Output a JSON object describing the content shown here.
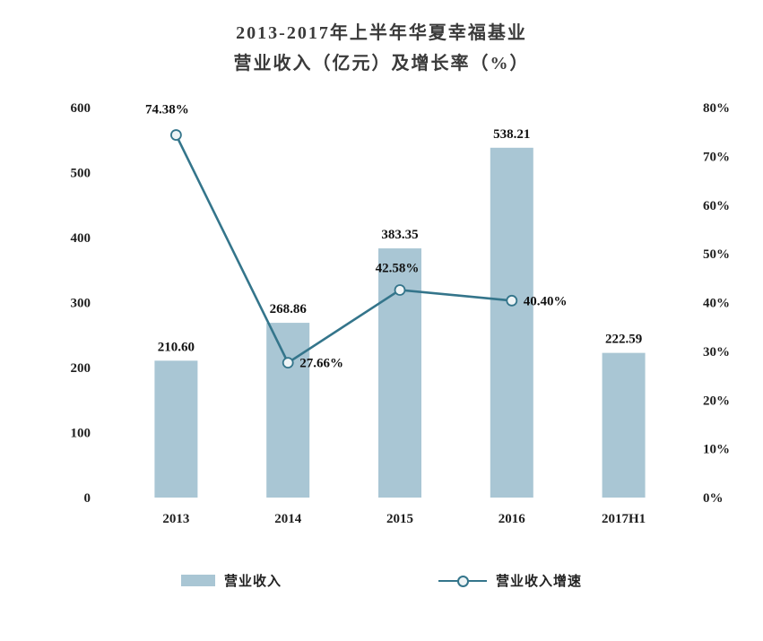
{
  "title": {
    "line1": "2013-2017年上半年华夏幸福基业",
    "line2": "营业收入（亿元）及增长率（%）"
  },
  "chart_data": {
    "type": "bar+line combo",
    "categories": [
      "2013",
      "2014",
      "2015",
      "2016",
      "2017H1"
    ],
    "series": [
      {
        "name": "营业收入",
        "type": "bar",
        "axis": "left",
        "values": [
          210.6,
          268.86,
          383.35,
          538.21,
          222.59
        ],
        "labels": [
          "210.60",
          "268.86",
          "383.35",
          "538.21",
          "222.59"
        ],
        "color": "#a9c6d4"
      },
      {
        "name": "营业收入增速",
        "type": "line",
        "axis": "right",
        "values": [
          74.38,
          27.66,
          42.58,
          40.4,
          null
        ],
        "labels": [
          "74.38%",
          "27.66%",
          "42.58%",
          "40.40%",
          ""
        ],
        "color": "#34758b"
      }
    ],
    "left_axis": {
      "min": 0,
      "max": 600,
      "step": 100,
      "ticks": [
        "0",
        "100",
        "200",
        "300",
        "400",
        "500",
        "600"
      ]
    },
    "right_axis": {
      "min": 0,
      "max": 80,
      "step": 10,
      "ticks": [
        "0%",
        "10%",
        "20%",
        "30%",
        "40%",
        "50%",
        "60%",
        "70%",
        "80%"
      ]
    },
    "grid": false,
    "legend_position": "bottom"
  },
  "legend": {
    "bar_label": "营业收入",
    "line_label": "营业收入增速"
  }
}
